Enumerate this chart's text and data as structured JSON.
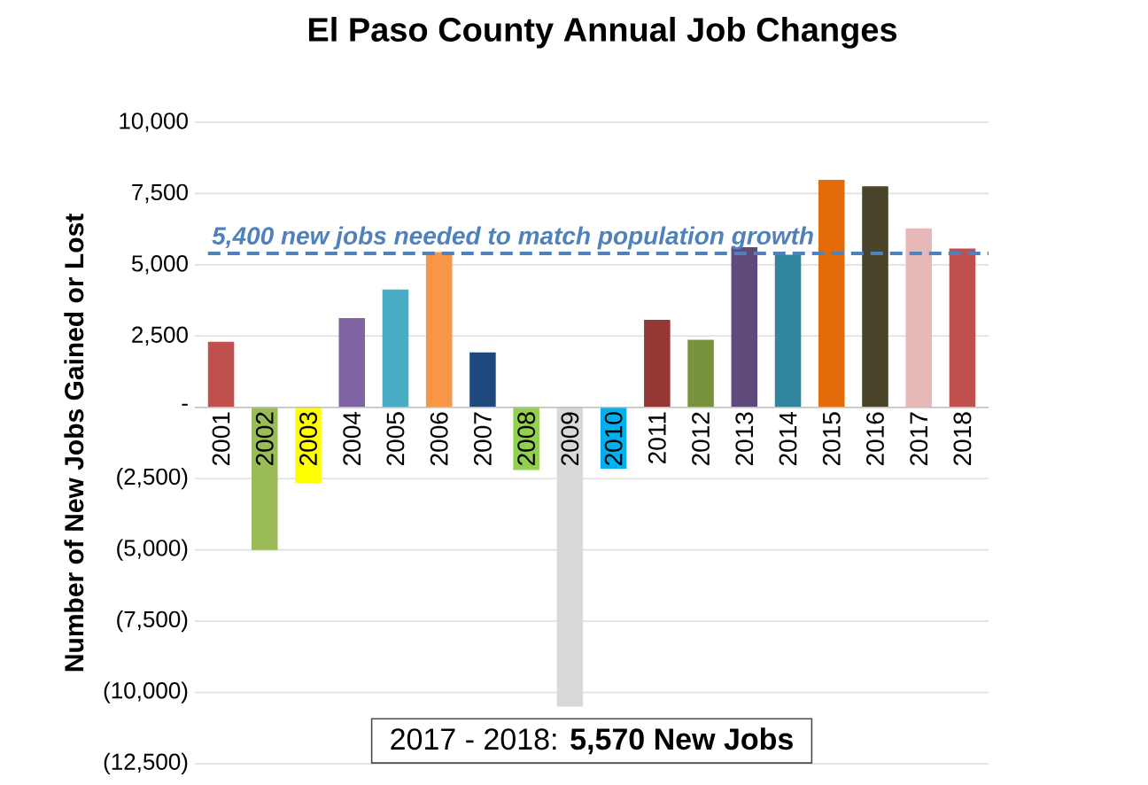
{
  "chart_data": {
    "type": "bar",
    "title": "El Paso County Annual Job Changes",
    "ylabel": "Number of New Jobs Gained or Lost",
    "categories": [
      "2001",
      "2002",
      "2003",
      "2004",
      "2005",
      "2006",
      "2007",
      "2008",
      "2009",
      "2010",
      "2011",
      "2012",
      "2013",
      "2014",
      "2015",
      "2016",
      "2017",
      "2018"
    ],
    "values": [
      2300,
      -5000,
      -2650,
      3130,
      4130,
      5450,
      1930,
      -2200,
      -10500,
      -2150,
      3070,
      2370,
      5620,
      5350,
      7980,
      7750,
      6280,
      5570
    ],
    "colors": [
      "#c0504d",
      "#9bbb59",
      "#ffff00",
      "#8064a2",
      "#4bacc6",
      "#f79646",
      "#1f497d",
      "#92d050",
      "#d9d9d9",
      "#00b0f0",
      "#953735",
      "#77933c",
      "#604a7b",
      "#31859c",
      "#e36c09",
      "#4a452a",
      "#e6b9b8",
      "#c0504d"
    ],
    "ylim": [
      -12500,
      10000
    ],
    "yticks": [
      {
        "value": 10000,
        "label": "10,000"
      },
      {
        "value": 7500,
        "label": "7,500"
      },
      {
        "value": 5000,
        "label": "5,000"
      },
      {
        "value": 2500,
        "label": "2,500"
      },
      {
        "value": 0,
        "label": "-"
      },
      {
        "value": -2500,
        "label": "(2,500)"
      },
      {
        "value": -5000,
        "label": "(5,000)"
      },
      {
        "value": -7500,
        "label": "(7,500)"
      },
      {
        "value": -10000,
        "label": "(10,000)"
      },
      {
        "value": -12500,
        "label": "(12,500)"
      }
    ],
    "grid": "y",
    "ref_lines": [
      {
        "axis": "y",
        "value": 5400,
        "label": "5,400 new jobs needed to match population growth",
        "color": "#4f81bd",
        "line_style": "dashed"
      }
    ],
    "annotations": [
      "2017 - 2018: **5,570 New Jobs**"
    ]
  }
}
